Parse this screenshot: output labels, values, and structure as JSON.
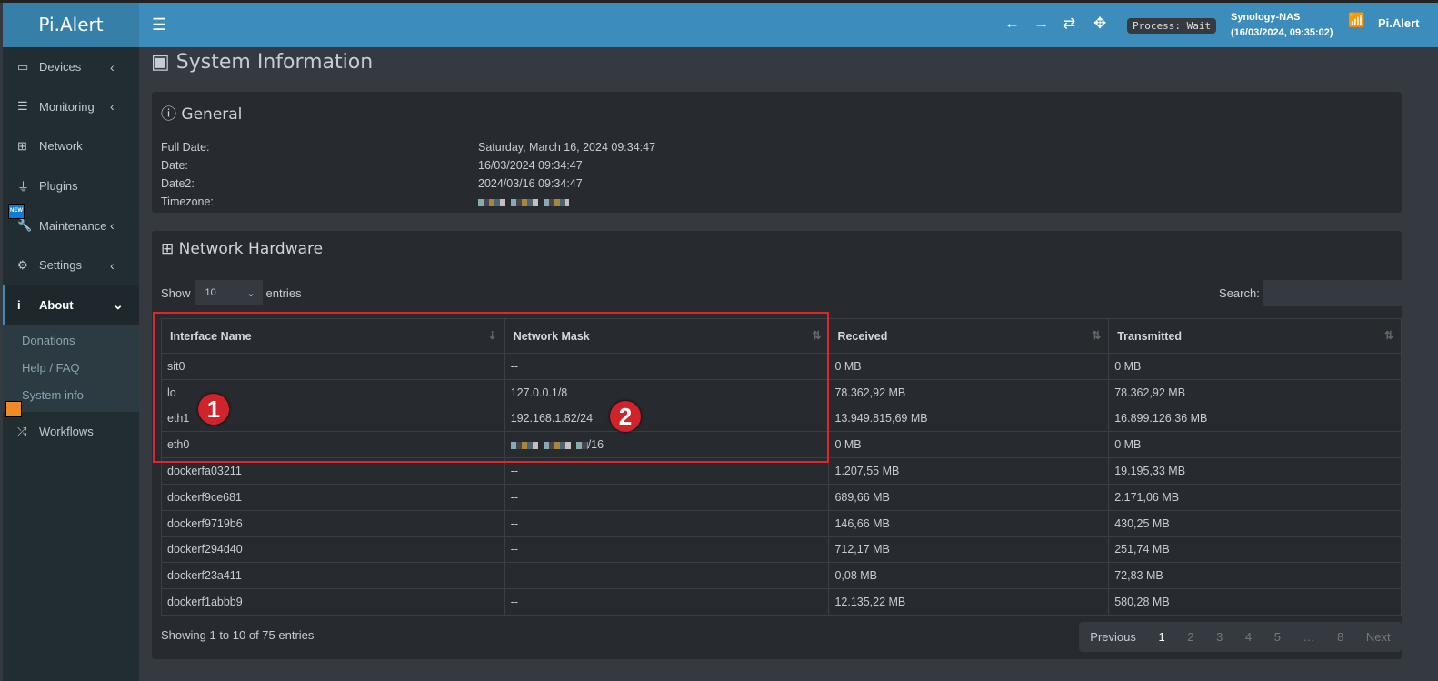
{
  "app": {
    "logo": "Pi.Alert",
    "process": "Process: Wait",
    "host": "Synology-NAS",
    "host_time": "(16/03/2024, 09:35:02)",
    "brand": "Pi.Alert"
  },
  "sidebar": {
    "items": [
      {
        "label": "Devices"
      },
      {
        "label": "Monitoring"
      },
      {
        "label": "Network"
      },
      {
        "label": "Plugins"
      },
      {
        "label": "Maintenance"
      },
      {
        "label": "Settings"
      },
      {
        "label": "About"
      },
      {
        "label": "Workflows"
      }
    ],
    "about_sub": [
      "Donations",
      "Help / FAQ",
      "System info"
    ],
    "new_badge": "NEW"
  },
  "page_title": "System Information",
  "general": {
    "title": "General",
    "rows": [
      {
        "k": "Full Date:",
        "v": "Saturday, March 16, 2024 09:34:47"
      },
      {
        "k": "Date:",
        "v": "16/03/2024 09:34:47"
      },
      {
        "k": "Date2:",
        "v": "2024/03/16 09:34:47"
      },
      {
        "k": "Timezone:",
        "v": ""
      }
    ]
  },
  "network": {
    "title": "Network Hardware",
    "show": "Show",
    "entries": "entries",
    "length": "10",
    "search": "Search:",
    "columns": [
      "Interface Name",
      "Network Mask",
      "Received",
      "Transmitted"
    ],
    "rows": [
      [
        "sit0",
        "--",
        "0 MB",
        "0 MB"
      ],
      [
        "lo",
        "127.0.0.1/8",
        "78.362,92 MB",
        "78.362,92 MB"
      ],
      [
        "eth1",
        "192.168.1.82/24",
        "13.949.815,69 MB",
        "16.899.126,36 MB"
      ],
      [
        "eth0",
        "/16",
        "0 MB",
        "0 MB"
      ],
      [
        "dockerfa03211",
        "--",
        "1.207,55 MB",
        "19.195,33 MB"
      ],
      [
        "dockerf9ce681",
        "--",
        "689,66 MB",
        "2.171,06 MB"
      ],
      [
        "dockerf9719b6",
        "--",
        "146,66 MB",
        "430,25 MB"
      ],
      [
        "dockerf294d40",
        "--",
        "712,17 MB",
        "251,74 MB"
      ],
      [
        "dockerf23a411",
        "--",
        "0,08 MB",
        "72,83 MB"
      ],
      [
        "dockerf1abbb9",
        "--",
        "12.135,22 MB",
        "580,28 MB"
      ]
    ],
    "info": "Showing 1 to 10 of 75 entries",
    "pager": [
      "Previous",
      "1",
      "2",
      "3",
      "4",
      "5",
      "…",
      "8",
      "Next"
    ]
  },
  "annotations": [
    "1",
    "2"
  ],
  "colors": {
    "topbar": "#3c8dbc",
    "sidebar": "#222d32",
    "annotation": "#e0252b"
  }
}
